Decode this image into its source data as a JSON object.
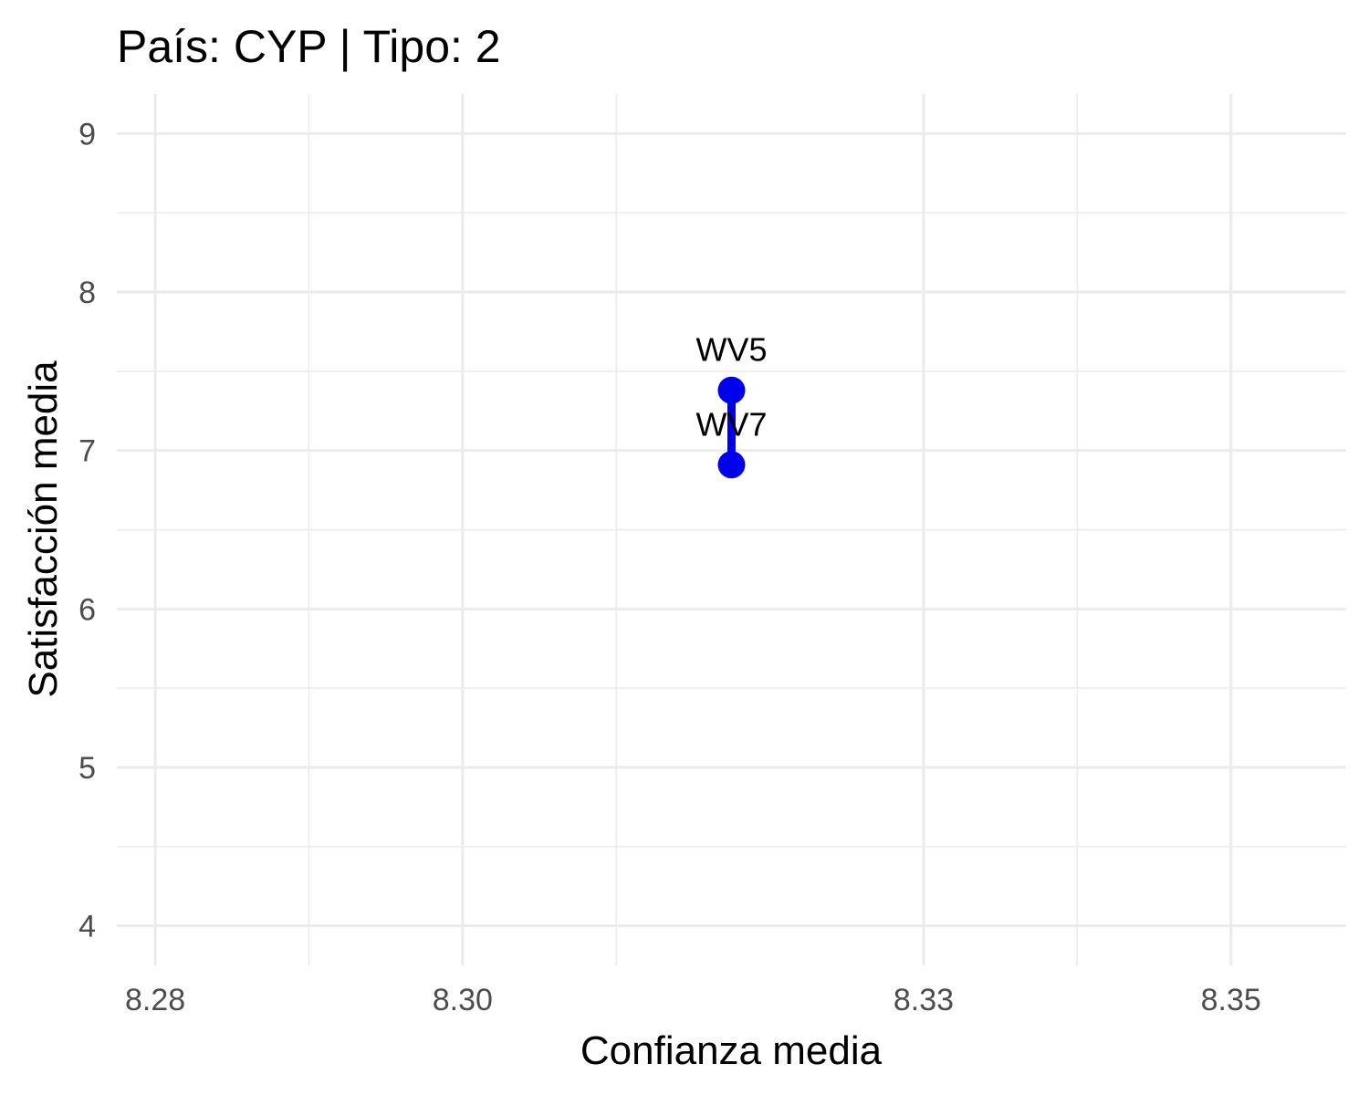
{
  "chart_data": {
    "type": "line",
    "title": "País: CYP | Tipo: 2",
    "xlabel": "Confianza media",
    "ylabel": "Satisfacción media",
    "xlim": [
      8.2775,
      8.3575
    ],
    "ylim": [
      3.75,
      9.25
    ],
    "x_ticks": [
      8.28,
      8.3,
      8.33,
      8.35
    ],
    "x_tick_labels": [
      "8.28",
      "8.30",
      "8.33",
      "8.35"
    ],
    "x_minor_ticks": [
      8.29,
      8.31,
      8.34,
      8.36
    ],
    "y_ticks": [
      4,
      5,
      6,
      7,
      8,
      9
    ],
    "y_tick_labels": [
      "4",
      "5",
      "6",
      "7",
      "8",
      "9"
    ],
    "y_minor_ticks": [
      4.5,
      5.5,
      6.5,
      7.5,
      8.5
    ],
    "grid": true,
    "legend": "none",
    "color": "#0000ee",
    "series": [
      {
        "points": [
          {
            "x": 8.3175,
            "y": 7.38,
            "label": "WV5"
          },
          {
            "x": 8.3175,
            "y": 6.91,
            "label": "WV7"
          }
        ]
      }
    ]
  }
}
